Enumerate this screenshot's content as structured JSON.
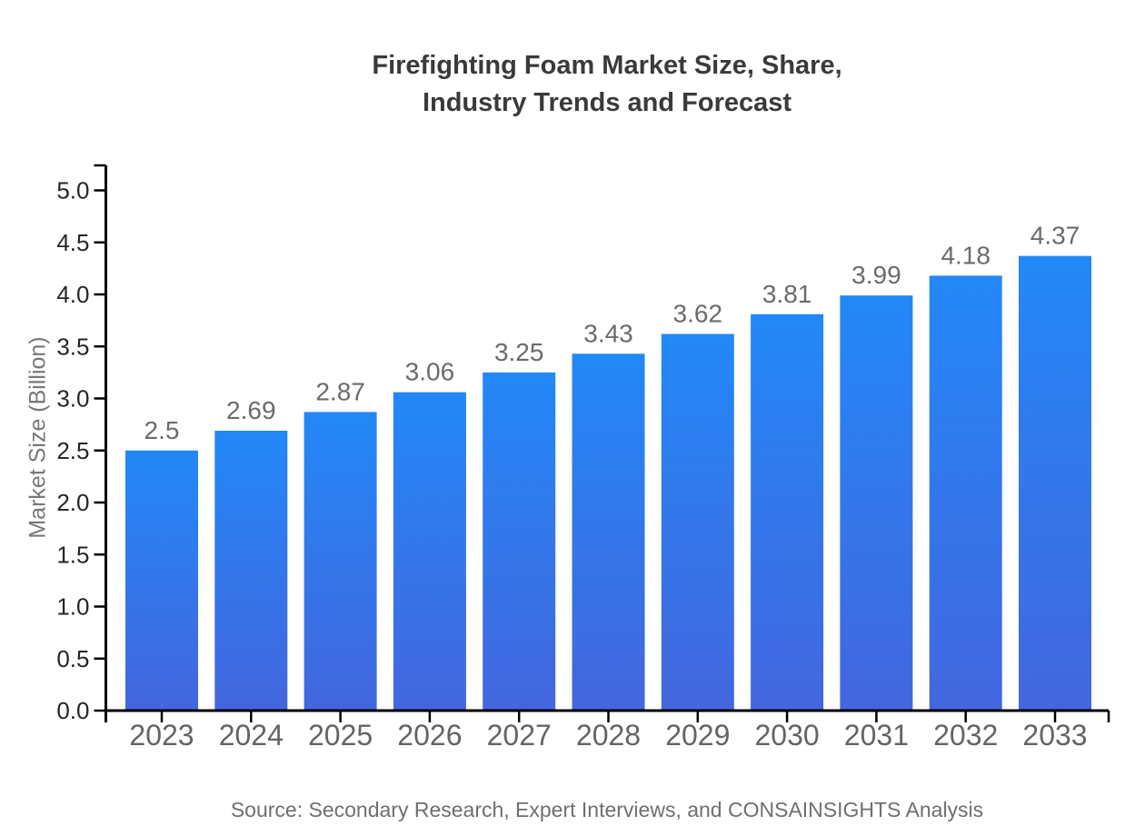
{
  "header": {
    "title_line1": "Firefighting Foam Market Size, Share,",
    "title_line2": "Industry Trends and Forecast"
  },
  "footer": {
    "source_text": "Source: Secondary Research, Expert Interviews, and CONSAINSIGHTS Analysis"
  },
  "chart_data": {
    "type": "bar",
    "title": "Firefighting Foam Market Size, Share, Industry Trends and Forecast",
    "categories": [
      "2023",
      "2024",
      "2025",
      "2026",
      "2027",
      "2028",
      "2029",
      "2030",
      "2031",
      "2032",
      "2033"
    ],
    "values": [
      2.5,
      2.69,
      2.87,
      3.06,
      3.25,
      3.43,
      3.62,
      3.81,
      3.99,
      4.18,
      4.37
    ],
    "value_labels": [
      "2.5",
      "2.69",
      "2.87",
      "3.06",
      "3.25",
      "3.43",
      "3.62",
      "3.81",
      "3.99",
      "4.18",
      "4.37"
    ],
    "xlabel": "",
    "ylabel": "Market Size (Billion)",
    "ylim": [
      0.0,
      5.25
    ],
    "yticks": [
      0.0,
      0.5,
      1.0,
      1.5,
      2.0,
      2.5,
      3.0,
      3.5,
      4.0,
      4.5,
      5.0
    ],
    "grid": false,
    "legend": "none",
    "colors": {
      "bar_gradient_top": "#2288f7",
      "bar_gradient_bottom": "#4466de",
      "axis": "#000000",
      "value_label": "#6b6b6b",
      "xtick_label": "#646464",
      "ytick_label": "#262626"
    }
  }
}
